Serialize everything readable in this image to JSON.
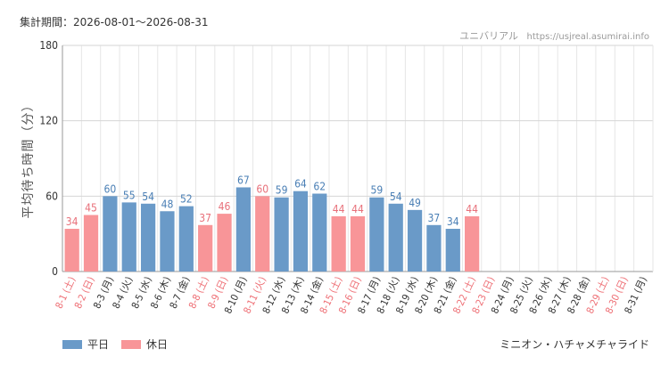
{
  "header": {
    "period": "集計期間：2026-08-01〜2026-08-31",
    "credit_name": "ユニバリアル",
    "credit_url": "https://usjreal.asumirai.info"
  },
  "attraction": "ミニオン・ハチャメチャライド",
  "legend": {
    "weekday": "平日",
    "holiday": "休日"
  },
  "colors": {
    "weekday": "#6a9ac8",
    "holiday": "#f89598",
    "weekday_label": "#4a7fb5",
    "holiday_label": "#e8707a",
    "axis_weekday": "#333333",
    "axis_holiday": "#ee6f75"
  },
  "chart_data": {
    "type": "bar",
    "ylabel": "平均待ち時間（分）",
    "ylim": [
      0,
      180
    ],
    "yticks": [
      0,
      60,
      120,
      180
    ],
    "grid": true,
    "categories": [
      "8-1 (土)",
      "8-2 (日)",
      "8-3 (月)",
      "8-4 (火)",
      "8-5 (水)",
      "8-6 (木)",
      "8-7 (金)",
      "8-8 (土)",
      "8-9 (日)",
      "8-10 (月)",
      "8-11 (火)",
      "8-12 (水)",
      "8-13 (木)",
      "8-14 (金)",
      "8-15 (土)",
      "8-16 (日)",
      "8-17 (月)",
      "8-18 (火)",
      "8-19 (水)",
      "8-20 (木)",
      "8-21 (金)",
      "8-22 (土)",
      "8-23 (日)",
      "8-24 (月)",
      "8-25 (火)",
      "8-26 (水)",
      "8-27 (木)",
      "8-28 (金)",
      "8-29 (土)",
      "8-30 (日)",
      "8-31 (月)"
    ],
    "values": [
      34,
      45,
      60,
      55,
      54,
      48,
      52,
      37,
      46,
      67,
      60,
      59,
      64,
      62,
      44,
      44,
      59,
      54,
      49,
      37,
      34,
      44,
      null,
      null,
      null,
      null,
      null,
      null,
      null,
      null,
      null
    ],
    "day_type": [
      "holiday",
      "holiday",
      "weekday",
      "weekday",
      "weekday",
      "weekday",
      "weekday",
      "holiday",
      "holiday",
      "weekday",
      "holiday",
      "weekday",
      "weekday",
      "weekday",
      "holiday",
      "holiday",
      "weekday",
      "weekday",
      "weekday",
      "weekday",
      "weekday",
      "holiday",
      "holiday",
      "weekday",
      "weekday",
      "weekday",
      "weekday",
      "weekday",
      "holiday",
      "holiday",
      "weekday"
    ]
  }
}
